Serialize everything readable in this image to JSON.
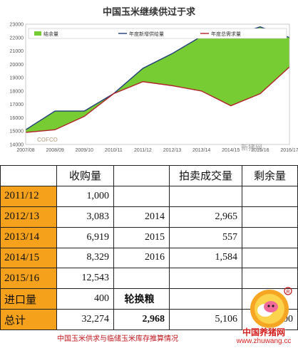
{
  "chart_data": {
    "type": "area",
    "title": "中国玉米继续供过于求",
    "x": [
      "2007/08",
      "2008/09",
      "2009/10",
      "2010/11",
      "2011/12",
      "2012/13",
      "2013/14",
      "2014/15",
      "2015/16",
      "2016/17"
    ],
    "series": [
      {
        "name": "年度新增供给量",
        "values": [
          15100,
          16500,
          16500,
          17800,
          19700,
          20800,
          22100,
          22100,
          22800,
          22000
        ]
      },
      {
        "name": "年度总需求量",
        "values": [
          14900,
          15100,
          16100,
          17800,
          18700,
          18400,
          18000,
          16900,
          17800,
          19800
        ]
      },
      {
        "name": "结余量"
      }
    ],
    "ylim": [
      14000,
      23000
    ],
    "yticks": [
      14000,
      15000,
      16000,
      17000,
      18000,
      19000,
      20000,
      21000,
      22000,
      23000
    ],
    "grid": false,
    "legend": "top",
    "colors": {
      "surplus_fill": "#77cc33",
      "supply_line": "#1f3c78",
      "demand_line": "#b1222a"
    }
  },
  "watermarks": {
    "top": "新猪网",
    "cofco": "COFCO"
  },
  "table": {
    "headers": [
      "",
      "收购量",
      "",
      "拍卖成交量",
      "剩余量"
    ],
    "rows": [
      {
        "label": "2011/12",
        "purchase": "1,000",
        "year": "",
        "auction": "",
        "rest": ""
      },
      {
        "label": "2012/13",
        "purchase": "3,083",
        "year": "2014",
        "auction": "2,965",
        "rest": ""
      },
      {
        "label": "2013/14",
        "purchase": "6,919",
        "year": "2015",
        "auction": "557",
        "rest": ""
      },
      {
        "label": "2014/15",
        "purchase": "8,329",
        "year": "2016",
        "auction": "1,584",
        "rest": ""
      },
      {
        "label": "2015/16",
        "purchase": "12,543",
        "year": "",
        "auction": "",
        "rest": ""
      },
      {
        "label": "进口量",
        "purchase": "400",
        "year": "轮换粮",
        "auction": "",
        "rest": ""
      },
      {
        "label": "总计",
        "purchase": "32,274",
        "year": "2,968",
        "auction": "5,106",
        "rest": "24,200"
      }
    ],
    "colors": {
      "label_bg": "#f5a11c",
      "header_bg": "#ffffff"
    }
  },
  "caption": "中国玉米供求与临储玉米库存推算情况",
  "logo": {
    "name": "中国养猪网",
    "url": "www.zhuwang.cc"
  }
}
